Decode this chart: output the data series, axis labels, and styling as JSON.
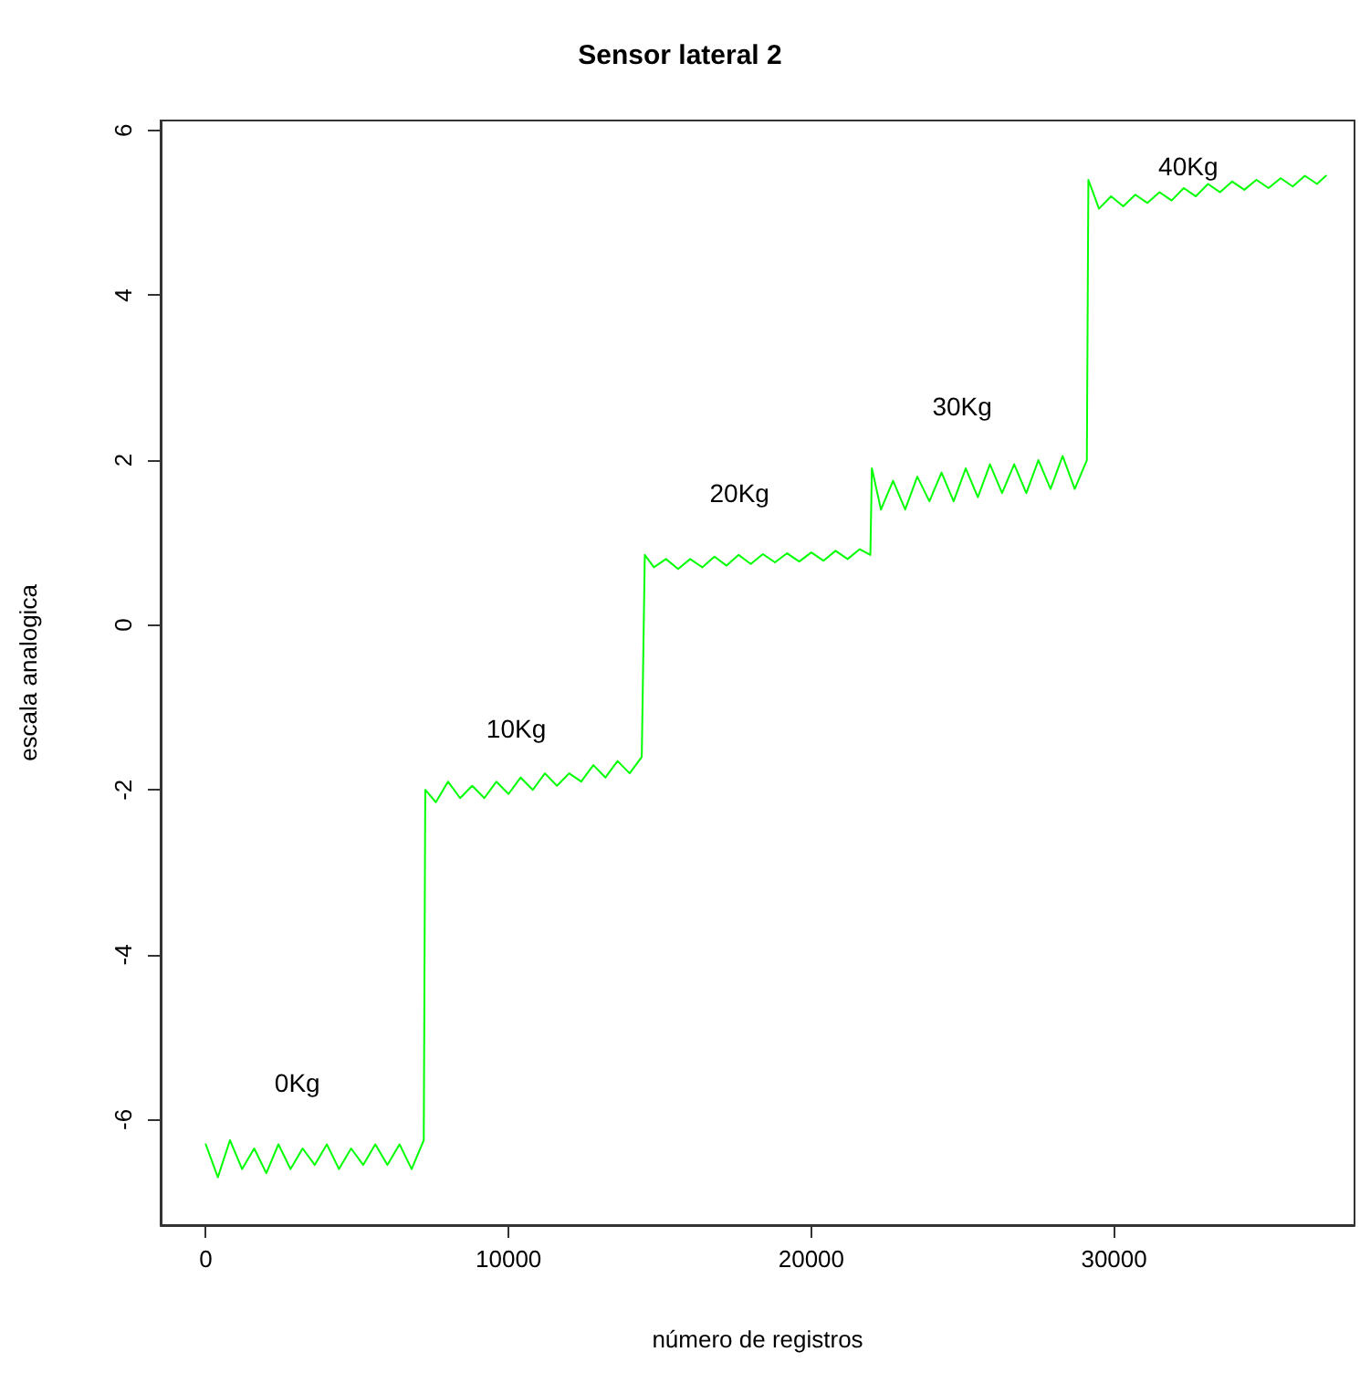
{
  "chart_data": {
    "type": "line",
    "title": "Sensor lateral 2",
    "xlabel": "número de registros",
    "ylabel": "escala analogica",
    "xlim": [
      -1490,
      37940
    ],
    "xticks": [
      0,
      10000,
      20000,
      30000
    ],
    "ylim": [
      -7.28,
      6.12
    ],
    "yticks": [
      -6,
      -4,
      -2,
      0,
      2,
      4,
      6
    ],
    "grid": false,
    "marker": "none",
    "line_style": "solid",
    "series": [
      {
        "color": "#00ff00",
        "x": [
          0,
          400,
          800,
          1200,
          1600,
          2000,
          2400,
          2800,
          3200,
          3600,
          4000,
          4400,
          4800,
          5200,
          5600,
          6000,
          6400,
          6800,
          7200,
          7250,
          7600,
          8000,
          8400,
          8800,
          9200,
          9600,
          10000,
          10400,
          10800,
          11200,
          11600,
          12000,
          12400,
          12800,
          13200,
          13600,
          14000,
          14400,
          14500,
          14800,
          15200,
          15600,
          16000,
          16400,
          16800,
          17200,
          17600,
          18000,
          18400,
          18800,
          19200,
          19600,
          20000,
          20400,
          20800,
          21200,
          21600,
          21950,
          22000,
          22300,
          22700,
          23100,
          23500,
          23900,
          24300,
          24700,
          25100,
          25500,
          25900,
          26300,
          26700,
          27100,
          27500,
          27900,
          28300,
          28700,
          29100,
          29150,
          29500,
          29900,
          30300,
          30700,
          31100,
          31500,
          31900,
          32300,
          32700,
          33100,
          33500,
          33900,
          34300,
          34700,
          35100,
          35500,
          35900,
          36300,
          36700,
          37000
        ],
        "values": [
          -6.3,
          -6.7,
          -6.25,
          -6.6,
          -6.35,
          -6.65,
          -6.3,
          -6.6,
          -6.35,
          -6.55,
          -6.3,
          -6.6,
          -6.35,
          -6.55,
          -6.3,
          -6.55,
          -6.3,
          -6.6,
          -6.25,
          -2.0,
          -2.15,
          -1.9,
          -2.1,
          -1.95,
          -2.1,
          -1.9,
          -2.05,
          -1.85,
          -2.0,
          -1.8,
          -1.95,
          -1.8,
          -1.9,
          -1.7,
          -1.85,
          -1.65,
          -1.8,
          -1.6,
          0.85,
          0.7,
          0.8,
          0.68,
          0.8,
          0.7,
          0.83,
          0.72,
          0.85,
          0.74,
          0.86,
          0.76,
          0.87,
          0.77,
          0.88,
          0.78,
          0.9,
          0.8,
          0.92,
          0.85,
          1.9,
          1.4,
          1.75,
          1.4,
          1.8,
          1.5,
          1.85,
          1.5,
          1.9,
          1.55,
          1.95,
          1.6,
          1.95,
          1.6,
          2.0,
          1.65,
          2.05,
          1.65,
          2.0,
          5.4,
          5.05,
          5.2,
          5.08,
          5.22,
          5.12,
          5.25,
          5.15,
          5.3,
          5.2,
          5.35,
          5.25,
          5.38,
          5.28,
          5.4,
          5.3,
          5.42,
          5.32,
          5.45,
          5.35,
          5.45
        ]
      }
    ],
    "annotations": [
      "0Kg",
      "10Kg",
      "20Kg",
      "30Kg",
      "40Kg"
    ]
  }
}
